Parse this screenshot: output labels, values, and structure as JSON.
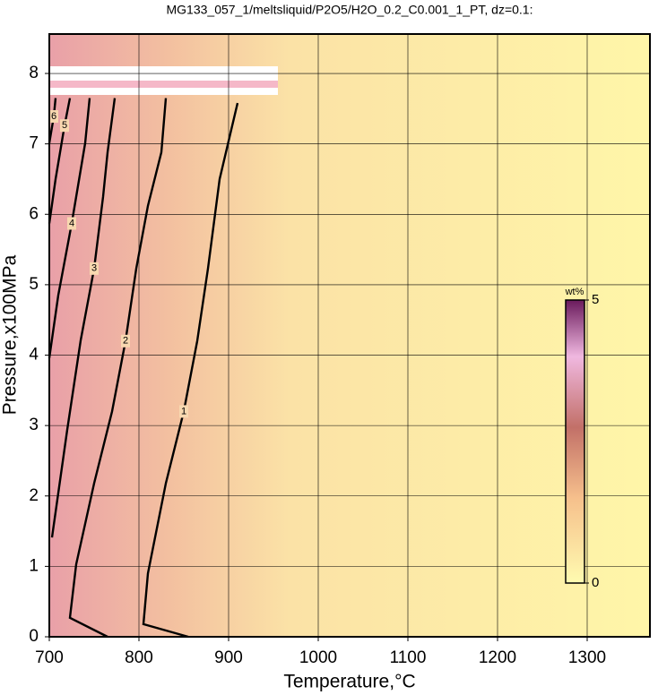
{
  "chart_data": {
    "type": "contour",
    "title": "MG133_057_1/meltsliquid/P2O5/H2O_0.2_C0.001_1_PT, dz=0.1:",
    "x_label": "Temperature,°C",
    "y_label": "Pressure,x100MPa",
    "xlim": [
      700,
      1370
    ],
    "xticks": [
      700,
      800,
      900,
      1000,
      1100,
      1200,
      1300
    ],
    "ylim": [
      0,
      8.56
    ],
    "yticks": [
      0,
      1,
      2,
      3,
      4,
      5,
      6,
      7,
      8
    ],
    "grid": true,
    "contours": [
      {
        "level": 1,
        "x": [
          855,
          805,
          810,
          830,
          850,
          865,
          877,
          890,
          910
        ],
        "y": [
          0,
          0.18,
          0.9,
          2.18,
          3.2,
          4.2,
          5.23,
          6.5,
          7.58
        ]
      },
      {
        "level": 2,
        "x": [
          765,
          723,
          730,
          750,
          770,
          785,
          797,
          810,
          825,
          830
        ],
        "y": [
          0,
          0.27,
          1.03,
          2.18,
          3.2,
          4.2,
          5.23,
          6.12,
          6.88,
          7.65
        ]
      },
      {
        "level": 3,
        "x": [
          703,
          720,
          735,
          750,
          760,
          765,
          773
        ],
        "y": [
          1.41,
          2.94,
          4.21,
          5.23,
          6.25,
          6.88,
          7.65
        ]
      },
      {
        "level": 4,
        "x": [
          700,
          710,
          725,
          740,
          745
        ],
        "y": [
          3.96,
          4.85,
          5.87,
          7.01,
          7.65
        ]
      },
      {
        "level": 5,
        "x": [
          700,
          707,
          717,
          723
        ],
        "y": [
          5.87,
          6.5,
          7.26,
          7.65
        ]
      },
      {
        "level": 6,
        "x": [
          700,
          705,
          707
        ],
        "y": [
          7.01,
          7.39,
          7.65
        ]
      }
    ],
    "colorbar": {
      "label": "wt%",
      "lim": [
        0,
        5
      ],
      "ticks": [
        0,
        5
      ]
    }
  }
}
